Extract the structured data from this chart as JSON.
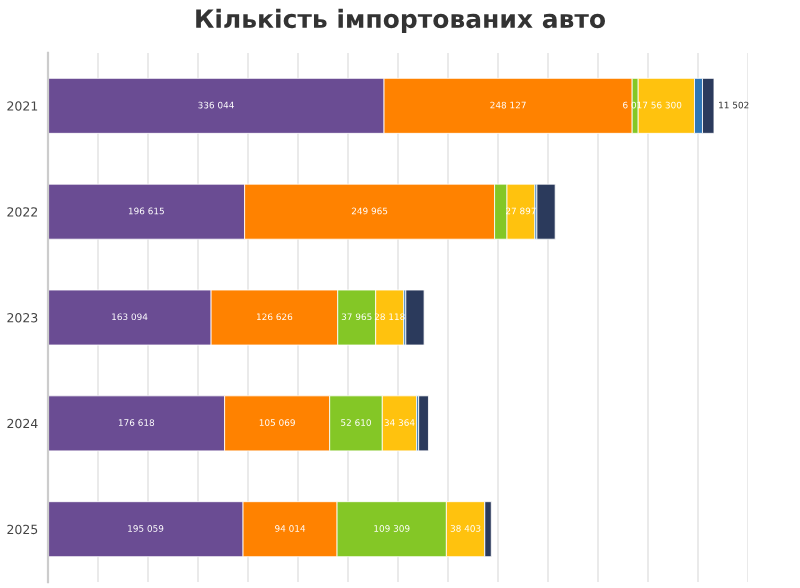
{
  "chart_data": {
    "type": "bar",
    "orientation": "horizontal",
    "stacked": true,
    "title": "Кількість імпортованих авто",
    "categories": [
      "2021",
      "2022",
      "2023",
      "2024",
      "2025"
    ],
    "series": [
      {
        "color": "#6a4c93",
        "values": [
          336044,
          196615,
          163094,
          176618,
          195059
        ],
        "value_labels": [
          "336 044",
          "196 615",
          "163 094",
          "176 618",
          "195 059"
        ]
      },
      {
        "color": "#ff8200",
        "values": [
          248127,
          249965,
          126626,
          105069,
          94014
        ],
        "value_labels": [
          "248 127",
          "249 965",
          "126 626",
          "105 069",
          "94 014"
        ]
      },
      {
        "color": "#84c726",
        "values": [
          6017,
          12400,
          37965,
          52610,
          109309
        ],
        "value_labels": [
          "6 017",
          null,
          "37 965",
          "52 610",
          "109 309"
        ]
      },
      {
        "color": "#ffc20e",
        "values": [
          56300,
          27897,
          28118,
          34364,
          38403
        ],
        "value_labels": [
          "56 300",
          "27 897",
          "28 118",
          "34 364",
          "38 403"
        ]
      },
      {
        "color": "#2e75b6",
        "values": [
          8000,
          2000,
          2000,
          2000,
          0
        ],
        "value_labels": [
          null,
          null,
          null,
          null,
          null
        ]
      },
      {
        "color": "#2b3a5c",
        "values": [
          11502,
          18300,
          18300,
          9800,
          6500
        ],
        "value_labels": [
          "11 502",
          null,
          null,
          null,
          null
        ]
      }
    ],
    "xlim": [
      0,
      700000
    ],
    "xticks": [
      {
        "value": 0,
        "label": null
      },
      {
        "value": 50000,
        "label": null
      },
      {
        "value": 100000,
        "label": null
      },
      {
        "value": 150000,
        "label": null
      },
      {
        "value": 200000,
        "label": null
      },
      {
        "value": 250000,
        "label": null
      },
      {
        "value": 300000,
        "label": null
      },
      {
        "value": 350000,
        "label": null
      },
      {
        "value": 400000,
        "label": null
      },
      {
        "value": 450000,
        "label": null
      },
      {
        "value": 500000,
        "label": null
      },
      {
        "value": 550000,
        "label": null
      },
      {
        "value": 600000,
        "label": null
      },
      {
        "value": 650000,
        "label": null
      },
      {
        "value": 700000,
        "label": null
      }
    ],
    "grid": "x",
    "tick_labels": "y"
  }
}
